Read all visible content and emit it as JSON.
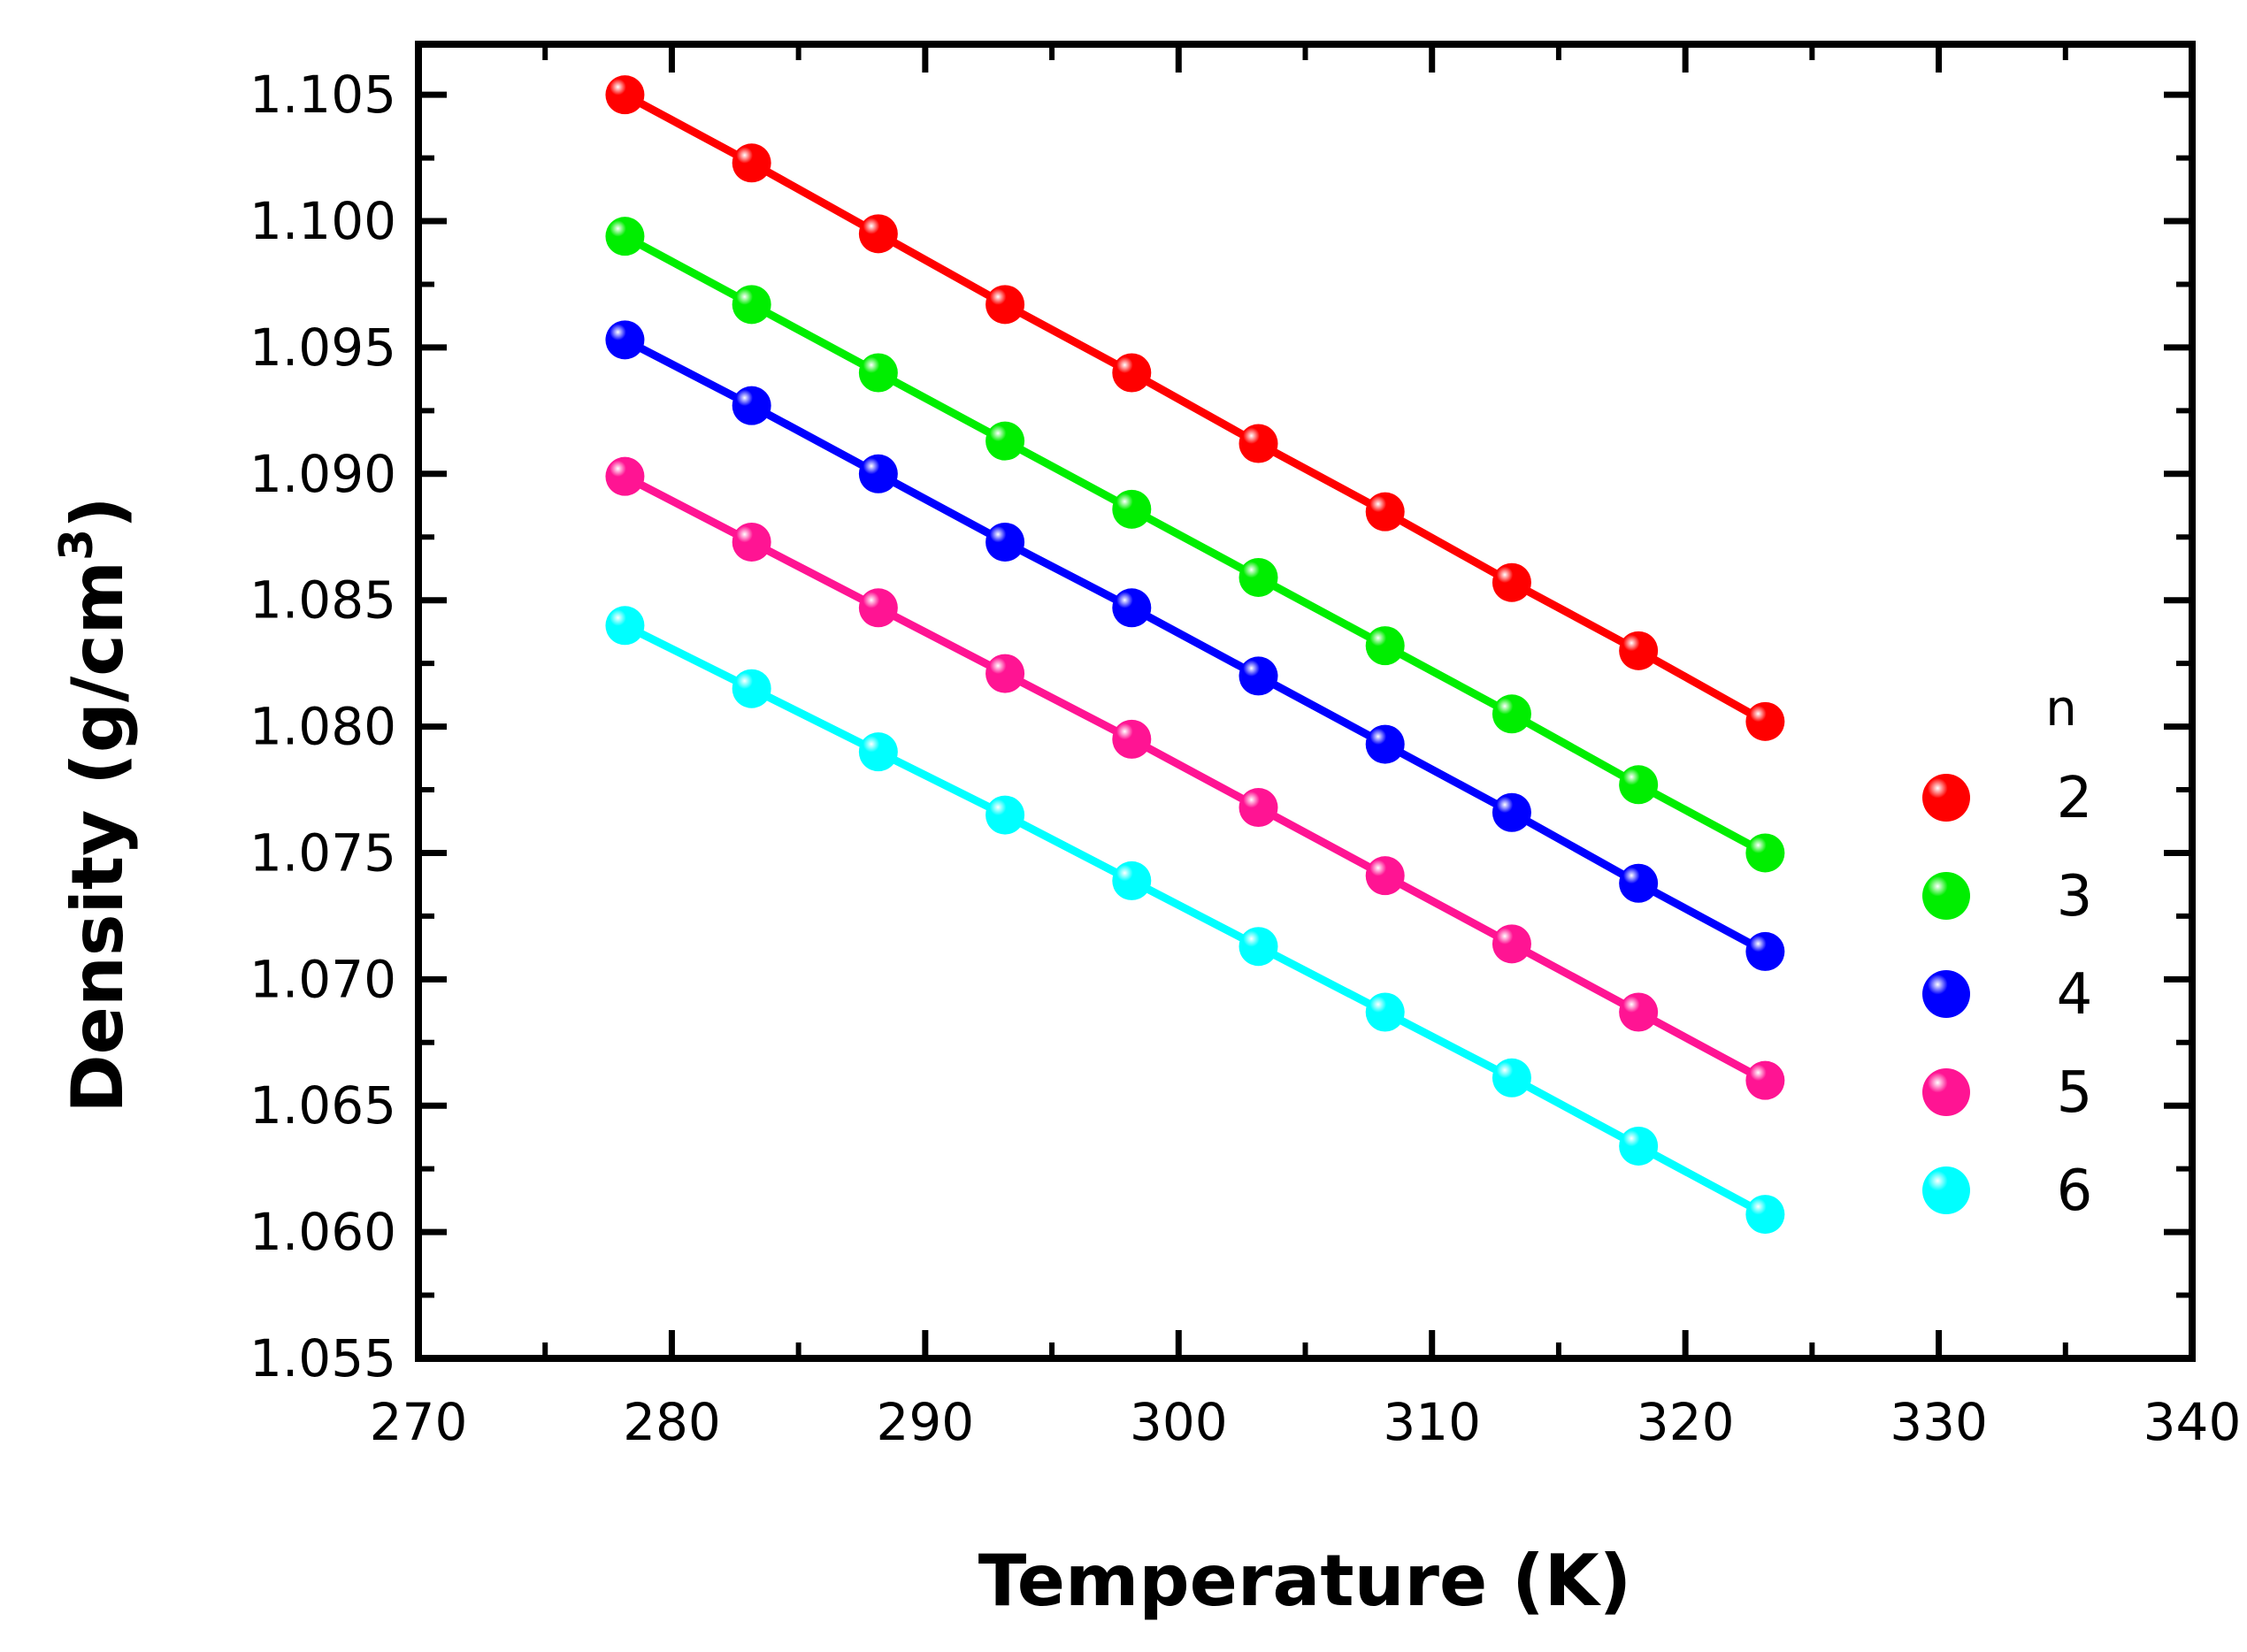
{
  "chart_data": {
    "type": "line",
    "title": "",
    "xlabel": "Temperature (K)",
    "ylabel_main": "Density (g/cm",
    "ylabel_sup": "3",
    "ylabel_close": ")",
    "xlim": [
      270,
      340
    ],
    "ylim": [
      1.055,
      1.107
    ],
    "x_ticks": [
      270,
      280,
      290,
      300,
      310,
      320,
      330,
      340
    ],
    "x_tick_labels": [
      "270",
      "280",
      "290",
      "300",
      "310",
      "320",
      "330",
      "340"
    ],
    "y_ticks": [
      1.055,
      1.06,
      1.065,
      1.07,
      1.075,
      1.08,
      1.085,
      1.09,
      1.095,
      1.1,
      1.105
    ],
    "y_tick_labels": [
      "1.055",
      "1.060",
      "1.065",
      "1.070",
      "1.075",
      "1.080",
      "1.085",
      "1.090",
      "1.095",
      "1.100",
      "1.105"
    ],
    "grid": false,
    "legend_title": "n",
    "legend_position": "right",
    "x": [
      278.15,
      283.15,
      288.15,
      293.15,
      298.15,
      303.15,
      308.15,
      313.15,
      318.15,
      323.15
    ],
    "series": [
      {
        "name": "2",
        "color": "#ff0000",
        "values": [
          1.105,
          1.1023,
          1.0995,
          1.0967,
          1.094,
          1.0912,
          1.0885,
          1.0857,
          1.083,
          1.0802
        ]
      },
      {
        "name": "3",
        "color": "#00ee00",
        "values": [
          1.0994,
          1.0967,
          1.094,
          1.0913,
          1.0886,
          1.0859,
          1.0832,
          1.0805,
          1.0777,
          1.075
        ]
      },
      {
        "name": "4",
        "color": "#0000ff",
        "values": [
          1.0953,
          1.0927,
          1.09,
          1.0873,
          1.0847,
          1.082,
          1.0793,
          1.0766,
          1.0738,
          1.0711
        ]
      },
      {
        "name": "5",
        "color": "#ff1493",
        "values": [
          1.0899,
          1.0873,
          1.0847,
          1.0821,
          1.0795,
          1.0768,
          1.0741,
          1.0714,
          1.0687,
          1.066
        ]
      },
      {
        "name": "6",
        "color": "#00ffff",
        "values": [
          1.084,
          1.0815,
          1.079,
          1.0765,
          1.0739,
          1.0713,
          1.0687,
          1.0661,
          1.0634,
          1.0607
        ]
      }
    ]
  }
}
